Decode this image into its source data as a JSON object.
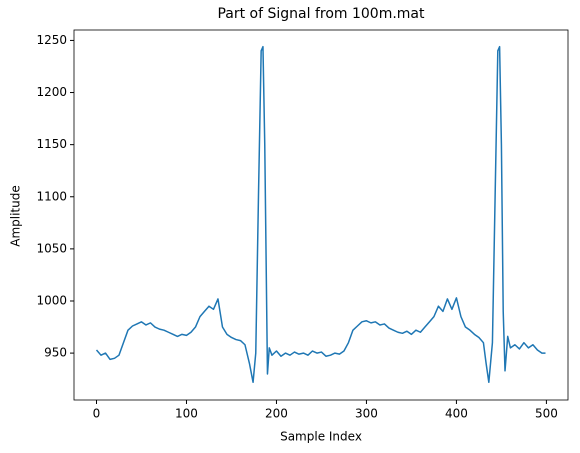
{
  "chart_data": {
    "type": "line",
    "title": "Part of Signal from 100m.mat",
    "xlabel": "Sample Index",
    "ylabel": "Amplitude",
    "x": [
      0,
      5,
      10,
      15,
      20,
      25,
      30,
      35,
      40,
      45,
      50,
      55,
      60,
      65,
      70,
      75,
      80,
      85,
      90,
      95,
      100,
      105,
      110,
      115,
      120,
      125,
      130,
      135,
      140,
      145,
      150,
      155,
      160,
      165,
      170,
      174,
      177,
      180,
      183,
      185,
      187,
      190,
      192,
      195,
      200,
      205,
      210,
      215,
      220,
      225,
      230,
      235,
      240,
      245,
      250,
      255,
      260,
      265,
      270,
      275,
      280,
      285,
      290,
      295,
      300,
      305,
      310,
      315,
      320,
      325,
      330,
      335,
      340,
      345,
      350,
      355,
      360,
      365,
      370,
      375,
      380,
      385,
      390,
      395,
      400,
      405,
      410,
      415,
      420,
      425,
      430,
      433,
      436,
      440,
      443,
      446,
      448,
      450,
      452,
      454,
      457,
      460,
      465,
      470,
      475,
      480,
      485,
      490,
      495,
      499
    ],
    "series": [
      {
        "name": "Signal",
        "color": "#1f77b4",
        "values": [
          953,
          948,
          950,
          944,
          945,
          948,
          960,
          972,
          976,
          978,
          980,
          977,
          979,
          975,
          973,
          972,
          970,
          968,
          966,
          968,
          967,
          970,
          975,
          985,
          990,
          995,
          992,
          1002,
          975,
          968,
          965,
          963,
          962,
          958,
          940,
          922,
          950,
          1100,
          1240,
          1244,
          1150,
          930,
          955,
          948,
          952,
          947,
          950,
          948,
          951,
          949,
          950,
          948,
          952,
          950,
          951,
          947,
          948,
          950,
          949,
          952,
          960,
          972,
          976,
          980,
          981,
          979,
          980,
          977,
          978,
          974,
          972,
          970,
          969,
          971,
          968,
          972,
          970,
          975,
          980,
          985,
          995,
          990,
          1002,
          992,
          1003,
          985,
          975,
          972,
          968,
          965,
          960,
          940,
          922,
          960,
          1100,
          1240,
          1244,
          1150,
          990,
          933,
          966,
          955,
          958,
          954,
          960,
          955,
          958,
          953,
          950,
          950
        ]
      }
    ],
    "xlim": [
      -25,
      524
    ],
    "ylim": [
      905,
      1260
    ],
    "xticks": [
      0,
      100,
      200,
      300,
      400,
      500
    ],
    "yticks": [
      950,
      1000,
      1050,
      1100,
      1150,
      1200,
      1250
    ]
  }
}
